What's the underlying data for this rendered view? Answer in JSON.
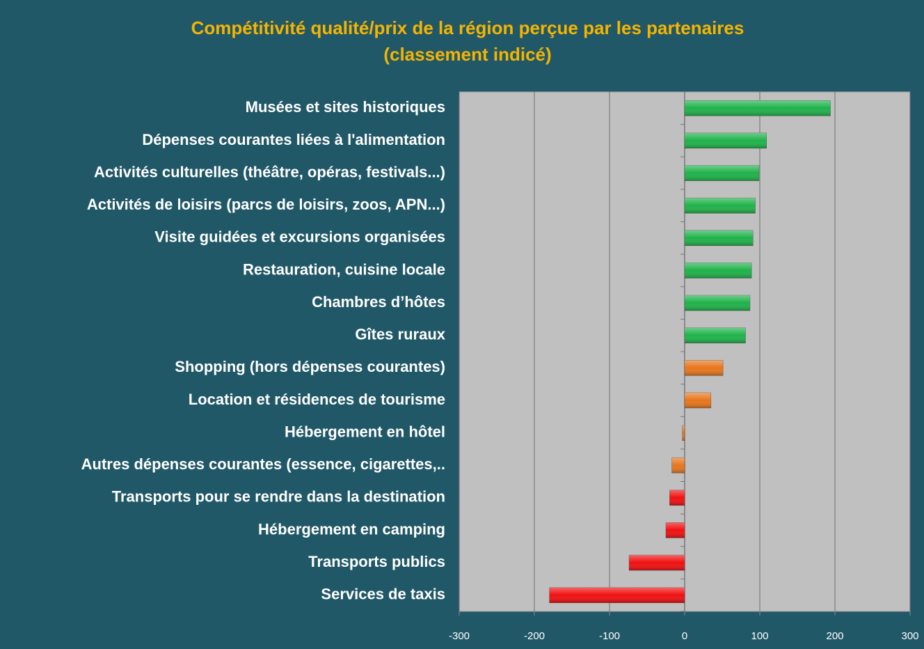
{
  "chart_data": {
    "type": "bar",
    "orientation": "horizontal",
    "title": "Compétitivité qualité/prix de la région perçue par les partenaires",
    "subtitle": "(classement indicé)",
    "categories": [
      "Musées et sites historiques",
      "Dépenses courantes liées à l'alimentation",
      "Activités culturelles (théâtre, opéras, festivals...)",
      "Activités de loisirs (parcs de loisirs, zoos, APN...)",
      "Visite guidées et excursions organisées",
      "Restauration, cuisine locale",
      "Chambres d’hôtes",
      "Gîtes ruraux",
      "Shopping (hors dépenses courantes)",
      "Location et résidences de tourisme",
      "Hébergement en hôtel",
      "Autres dépenses courantes  (essence, cigarettes,..",
      "Transports pour se rendre dans la destination",
      "Hébergement en camping",
      "Transports publics",
      "Services de taxis"
    ],
    "values": [
      194,
      109,
      99,
      94,
      91,
      89,
      87,
      81,
      51,
      35,
      -3,
      -17,
      -20,
      -25,
      -74,
      -180
    ],
    "colors": [
      "#1fb24a",
      "#1fb24a",
      "#1fb24a",
      "#1fb24a",
      "#1fb24a",
      "#1fb24a",
      "#1fb24a",
      "#1fb24a",
      "#e8761c",
      "#e8761c",
      "#e8761c",
      "#e8761c",
      "#f01010",
      "#f01010",
      "#f01010",
      "#f01010"
    ],
    "xlim": [
      -300,
      300
    ],
    "xticks": [
      -300,
      -200,
      -100,
      0,
      100,
      200,
      300
    ],
    "grid": true
  }
}
